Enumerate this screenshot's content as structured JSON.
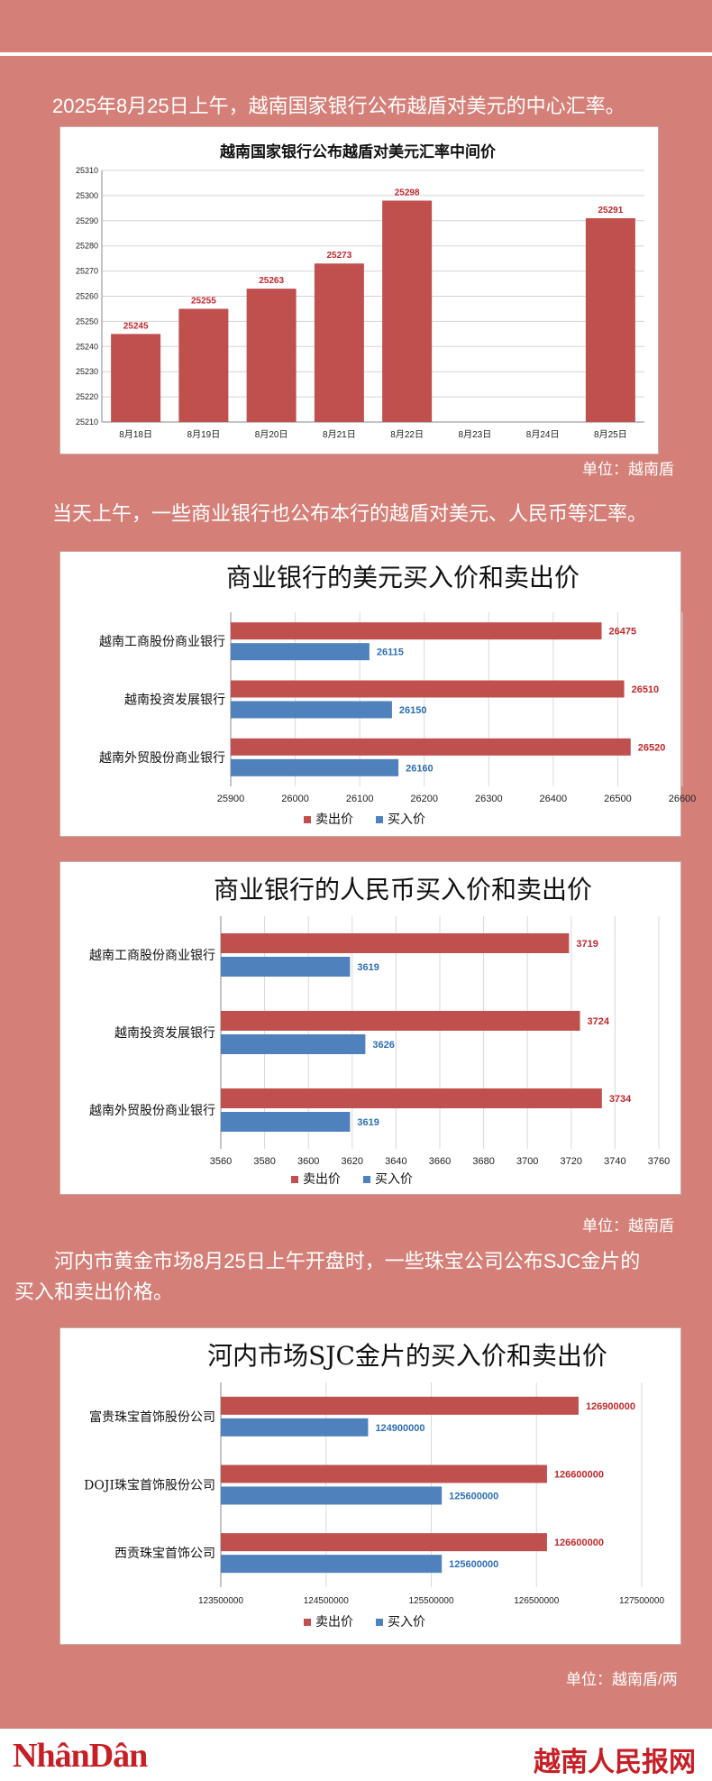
{
  "paragraphs": {
    "p1": "2025年8月25日上午，越南国家银行公布越盾对美元的中心汇率。",
    "p2": "当天上午，一些商业银行也公布本行的越盾对美元、人民币等汇率。",
    "p3_line1": "河内市黄金市场8月25日上午开盘时，一些珠宝公司公布SJC金片的",
    "p3_line2": "买入和卖出价格。"
  },
  "units": {
    "u1": "单位：越南盾",
    "u2": "单位：越南盾",
    "u3": "单位：越南盾/两"
  },
  "footer": {
    "logo_left": "NhânDân",
    "logo_right": "越南人民报网"
  },
  "colors": {
    "sell": "#c0504d",
    "buy": "#4f81bd",
    "background": "#d48078"
  },
  "chart_data": [
    {
      "type": "bar",
      "title": "越南国家银行公布越盾对美元汇率中间价",
      "categories": [
        "8月18日",
        "8月19日",
        "8月20日",
        "8月21日",
        "8月22日",
        "8月23日",
        "8月24日",
        "8月25日"
      ],
      "values": [
        25245,
        25255,
        25263,
        25273,
        25298,
        null,
        null,
        25291
      ],
      "data_labels": [
        "25245",
        "25255",
        "25263",
        "25273",
        "25298",
        "",
        "",
        "25291"
      ],
      "ylim": [
        25210,
        25310
      ],
      "yticks": [
        "25210",
        "25220",
        "25230",
        "25240",
        "25250",
        "25260",
        "25270",
        "25280",
        "25290",
        "25300",
        "25310"
      ],
      "grid": true
    },
    {
      "type": "bar",
      "orientation": "horizontal",
      "title": "商业银行的美元买入价和卖出价",
      "categories": [
        "越南工商股份商业银行",
        "越南投资发展银行",
        "越南外贸股份商业银行"
      ],
      "series": [
        {
          "name": "卖出价",
          "values": [
            26475,
            26510,
            26520
          ],
          "labels": [
            "26475",
            "26510",
            "26520"
          ]
        },
        {
          "name": "买入价",
          "values": [
            26115,
            26150,
            26160
          ],
          "labels": [
            "26115",
            "26150",
            "26160"
          ]
        }
      ],
      "xlim": [
        25900,
        26600
      ],
      "xticks": [
        "25900",
        "26000",
        "26100",
        "26200",
        "26300",
        "26400",
        "26500",
        "26600"
      ],
      "legend": "bottom"
    },
    {
      "type": "bar",
      "orientation": "horizontal",
      "title": "商业银行的人民币买入价和卖出价",
      "categories": [
        "越南工商股份商业银行",
        "越南投资发展银行",
        "越南外贸股份商业银行"
      ],
      "series": [
        {
          "name": "卖出价",
          "values": [
            3719,
            3724,
            3734
          ],
          "labels": [
            "3719",
            "3724",
            "3734"
          ]
        },
        {
          "name": "买入价",
          "values": [
            3619,
            3626,
            3619
          ],
          "labels": [
            "3619",
            "3626",
            "3619"
          ]
        }
      ],
      "xlim": [
        3560,
        3760
      ],
      "xticks": [
        "3560",
        "3580",
        "3600",
        "3620",
        "3640",
        "3660",
        "3680",
        "3700",
        "3720",
        "3740",
        "3760"
      ],
      "legend": "bottom"
    },
    {
      "type": "bar",
      "orientation": "horizontal",
      "title": "河内市场SJC金片的买入价和卖出价",
      "categories": [
        "富贵珠宝首饰股份公司",
        "DOJI珠宝首饰股份公司",
        "西贡珠宝首饰公司"
      ],
      "series": [
        {
          "name": "卖出价",
          "values": [
            126900000,
            126600000,
            126600000
          ],
          "labels": [
            "126900000",
            "126600000",
            "126600000"
          ]
        },
        {
          "name": "买入价",
          "values": [
            124900000,
            125600000,
            125600000
          ],
          "labels": [
            "124900000",
            "125600000",
            "125600000"
          ]
        }
      ],
      "xlim": [
        123500000,
        127500000
      ],
      "xticks": [
        "123500000",
        "124500000",
        "125500000",
        "126500000",
        "127500000"
      ],
      "legend": "bottom"
    }
  ]
}
